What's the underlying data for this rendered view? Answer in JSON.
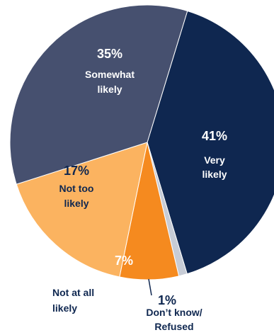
{
  "chart_data": {
    "type": "pie",
    "slices": [
      {
        "label": [
          "Very",
          "likely"
        ],
        "value": 41,
        "pct_text": "41%",
        "color": "#0f2750",
        "text_color": "#ffffff"
      },
      {
        "label": [
          "Don’t know/",
          "Refused"
        ],
        "value": 1,
        "pct_text": "1%",
        "color": "#c7ccd6",
        "text_color": "#0f2750"
      },
      {
        "label": [
          "Not at all",
          "likely"
        ],
        "value": 7,
        "pct_text": "7%",
        "color": "#f58a1f",
        "text_color": "#ffffff"
      },
      {
        "label": [
          "Not too",
          "likely"
        ],
        "value": 17,
        "pct_text": "17%",
        "color": "#fbb360",
        "text_color": "#0f2750"
      },
      {
        "label": [
          "Somewhat",
          "likely"
        ],
        "value": 35,
        "pct_text": "35%",
        "color": "#46506f",
        "text_color": "#ffffff"
      }
    ],
    "start_angle_deg": 17,
    "direction": "clockwise-from-top"
  }
}
